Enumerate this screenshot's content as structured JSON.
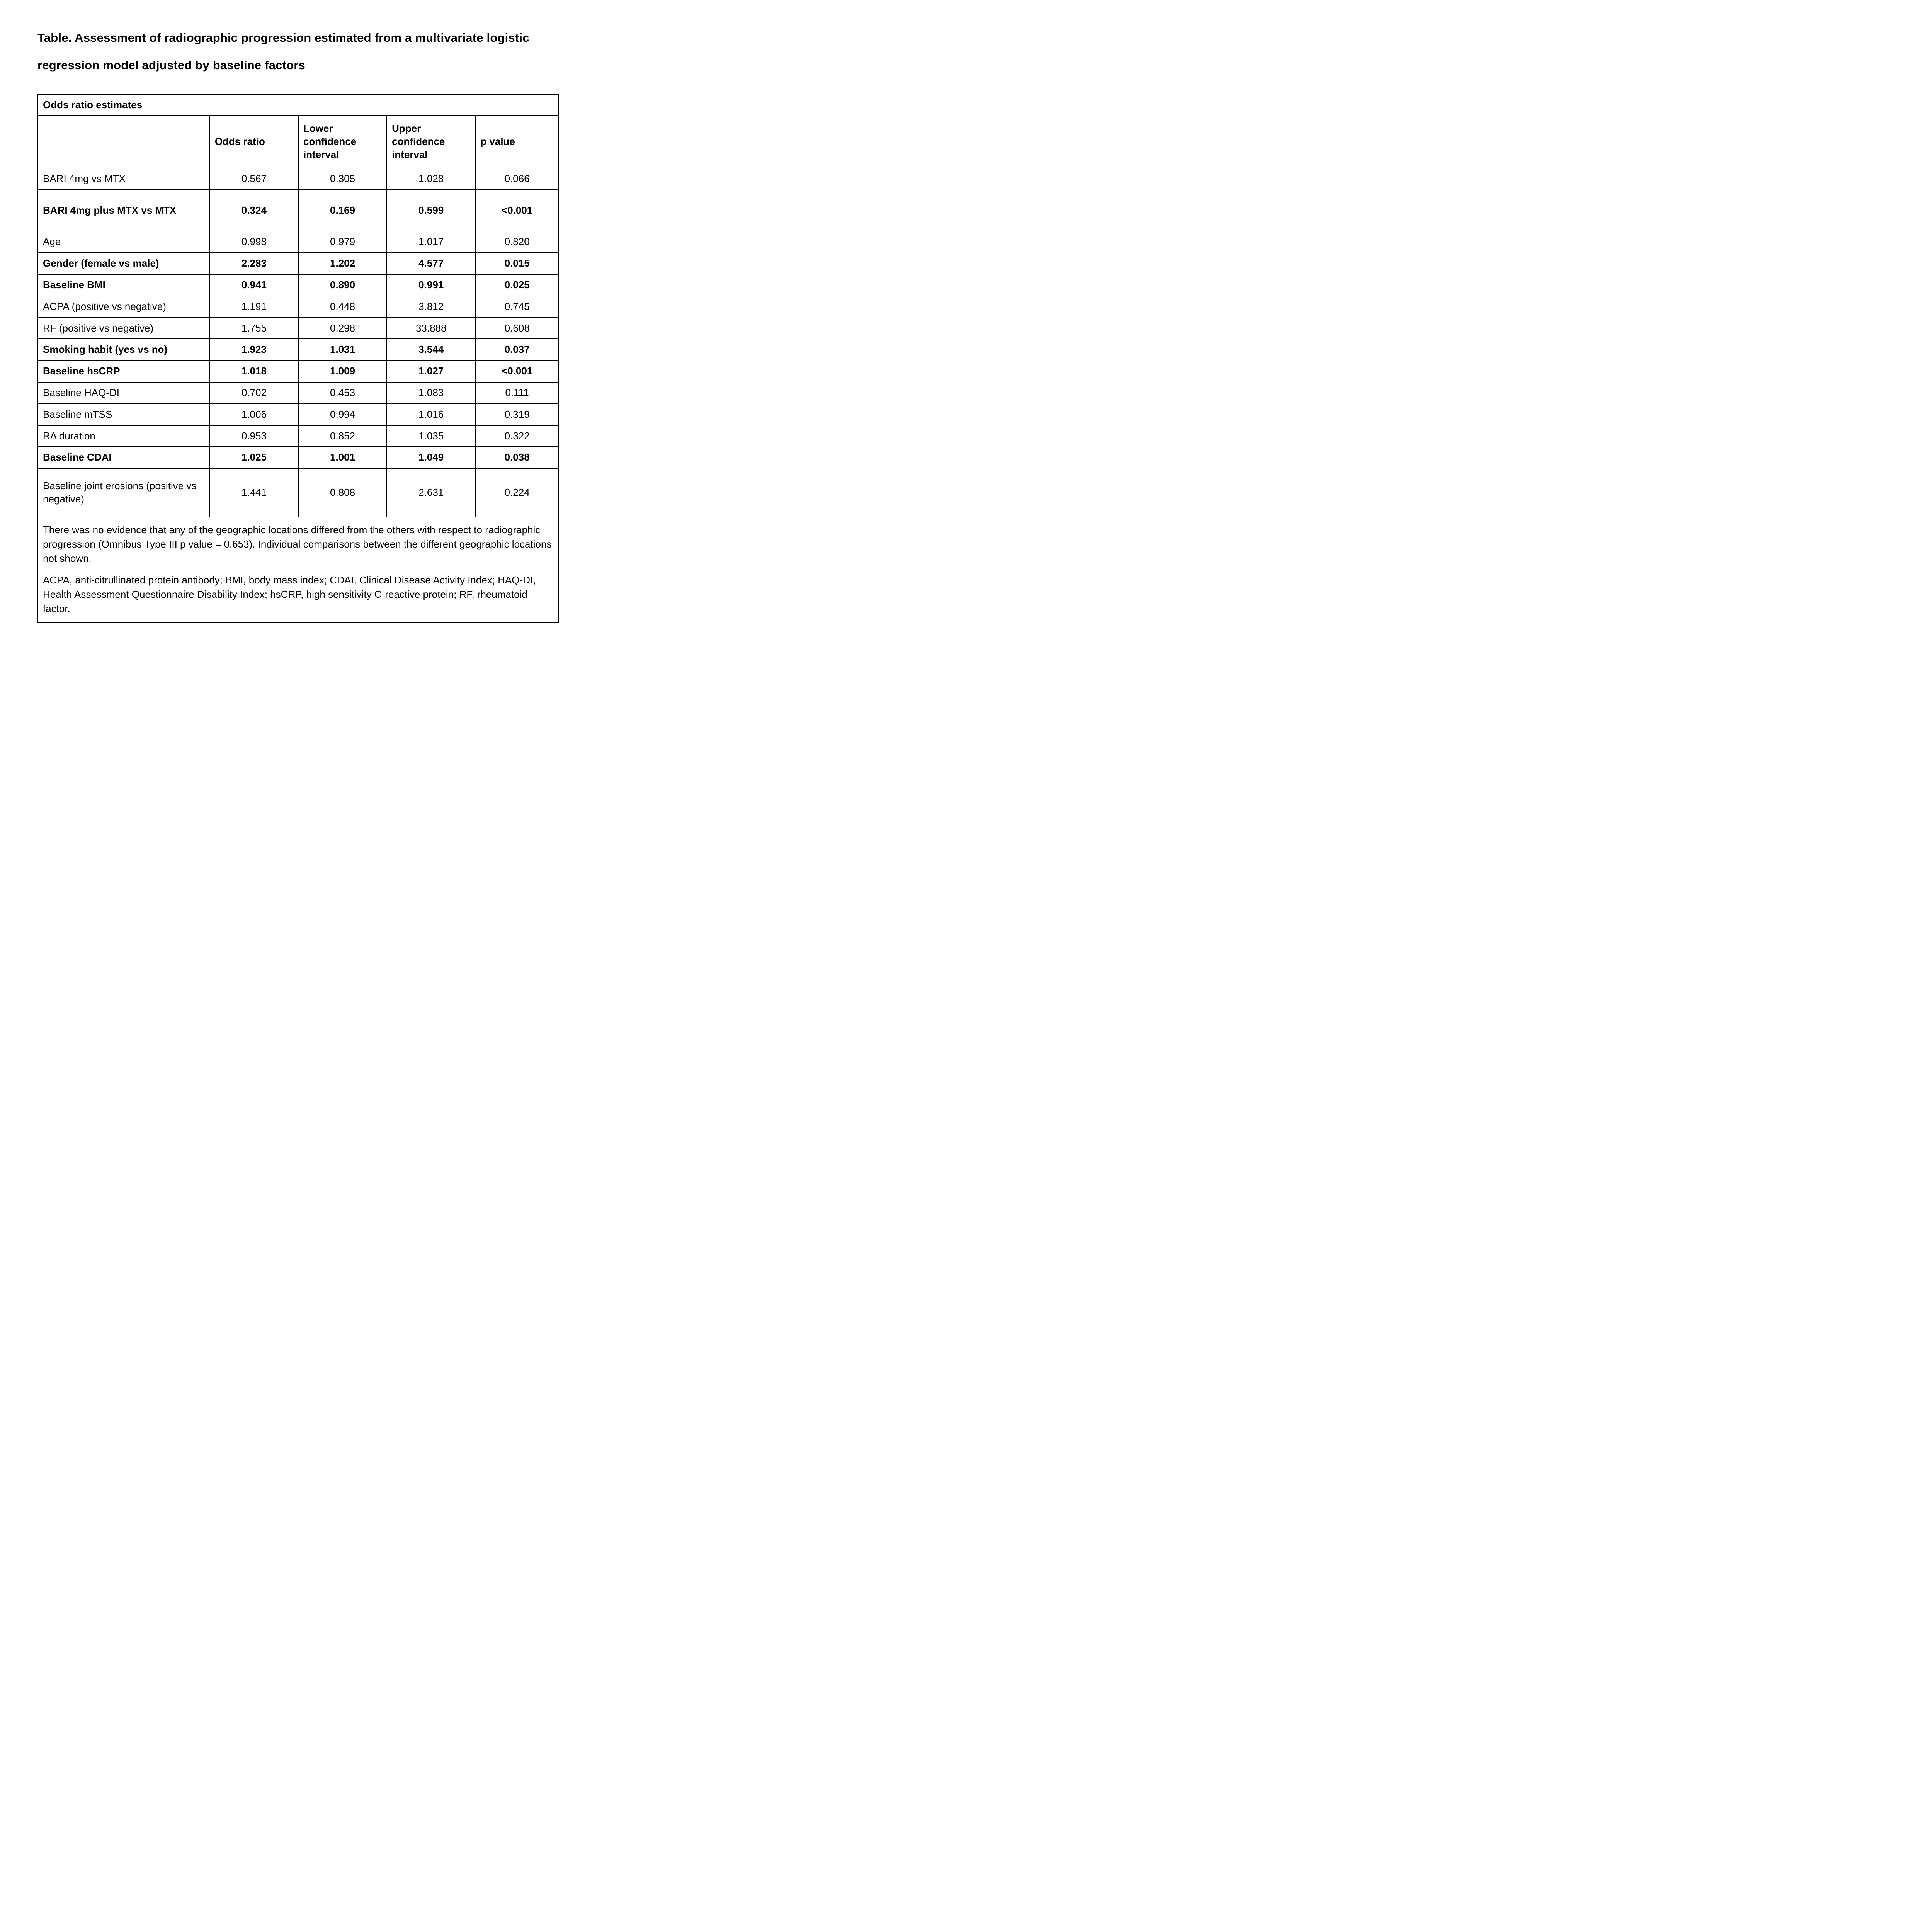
{
  "title": "Table. Assessment of radiographic progression estimated from a multivariate logistic regression model adjusted by baseline factors",
  "table": {
    "caption": "Odds ratio estimates",
    "columns": [
      "",
      "Odds ratio",
      "Lower confidence interval",
      "Upper confidence interval",
      "p value"
    ],
    "rows": [
      {
        "label": "BARI 4mg vs MTX",
        "odds_ratio": "0.567",
        "lower_ci": "0.305",
        "upper_ci": "1.028",
        "p_value": "0.066",
        "bold": false
      },
      {
        "label": "BARI 4mg plus MTX vs MTX",
        "odds_ratio": "0.324",
        "lower_ci": "0.169",
        "upper_ci": "0.599",
        "p_value": "<0.001",
        "bold": true
      },
      {
        "label": "Age",
        "odds_ratio": "0.998",
        "lower_ci": "0.979",
        "upper_ci": "1.017",
        "p_value": "0.820",
        "bold": false
      },
      {
        "label": "Gender (female vs male)",
        "odds_ratio": "2.283",
        "lower_ci": "1.202",
        "upper_ci": "4.577",
        "p_value": "0.015",
        "bold": true
      },
      {
        "label": "Baseline BMI",
        "odds_ratio": "0.941",
        "lower_ci": "0.890",
        "upper_ci": "0.991",
        "p_value": "0.025",
        "bold": true
      },
      {
        "label": "ACPA (positive vs negative)",
        "odds_ratio": "1.191",
        "lower_ci": "0.448",
        "upper_ci": "3.812",
        "p_value": "0.745",
        "bold": false
      },
      {
        "label": "RF (positive vs negative)",
        "odds_ratio": "1.755",
        "lower_ci": "0.298",
        "upper_ci": "33.888",
        "p_value": "0.608",
        "bold": false
      },
      {
        "label": "Smoking habit (yes vs no)",
        "odds_ratio": "1.923",
        "lower_ci": "1.031",
        "upper_ci": "3.544",
        "p_value": "0.037",
        "bold": true
      },
      {
        "label": "Baseline hsCRP",
        "odds_ratio": "1.018",
        "lower_ci": "1.009",
        "upper_ci": "1.027",
        "p_value": "<0.001",
        "bold": true
      },
      {
        "label": "Baseline HAQ-DI",
        "odds_ratio": "0.702",
        "lower_ci": "0.453",
        "upper_ci": "1.083",
        "p_value": "0.111",
        "bold": false
      },
      {
        "label": "Baseline mTSS",
        "odds_ratio": "1.006",
        "lower_ci": "0.994",
        "upper_ci": "1.016",
        "p_value": "0.319",
        "bold": false
      },
      {
        "label": "RA duration",
        "odds_ratio": "0.953",
        "lower_ci": "0.852",
        "upper_ci": "1.035",
        "p_value": "0.322",
        "bold": false
      },
      {
        "label": "Baseline CDAI",
        "odds_ratio": "1.025",
        "lower_ci": "1.001",
        "upper_ci": "1.049",
        "p_value": "0.038",
        "bold": true
      },
      {
        "label": "Baseline joint erosions (positive vs negative)",
        "odds_ratio": "1.441",
        "lower_ci": "0.808",
        "upper_ci": "2.631",
        "p_value": "0.224",
        "bold": false
      }
    ],
    "notes": [
      "There was no evidence that any of the geographic locations differed from the others with respect to radiographic progression (Omnibus Type III p value = 0.653). Individual comparisons between the different geographic locations not shown.",
      "ACPA, anti-citrullinated protein antibody; BMI, body mass index; CDAI, Clinical Disease Activity Index; HAQ-DI, Health Assessment Questionnaire Disability Index; hsCRP, high sensitivity C-reactive protein; RF, rheumatoid factor."
    ]
  }
}
